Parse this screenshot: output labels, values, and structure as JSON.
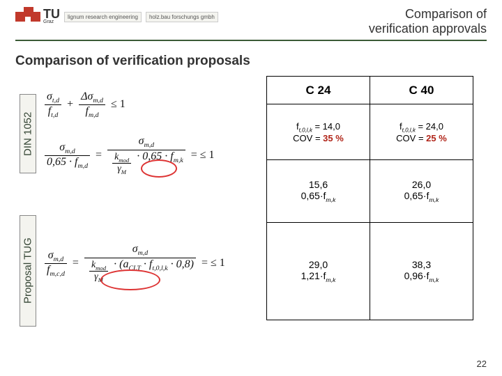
{
  "header": {
    "tu": "TU",
    "tu_sub": "Graz",
    "partner1": "lignum research engineering",
    "partner2": "holz.bau forschungs gmbh",
    "title_line1": "Comparison of",
    "title_line2": "verification approvals"
  },
  "subtitle": "Comparison of verification proposals",
  "vlabels": {
    "din": "DIN 1052",
    "tug": "Proposal TUG"
  },
  "formulas": {
    "f1": {
      "t1_num": "σ",
      "t1_num_sub": "t,d",
      "t1_den": "f",
      "t1_den_sub": "t,d",
      "plus": "+",
      "t2_num": "Δσ",
      "t2_num_sub": "m,d",
      "t2_den": "f",
      "t2_den_sub": "m,d",
      "tail": "≤ 1"
    },
    "f2": {
      "lhs_num": "σ",
      "lhs_num_sub": "m,d",
      "lhs_den_a": "0,65 · f",
      "lhs_den_a_sub": "m,d",
      "eq": "=",
      "mid_num": "σ",
      "mid_num_sub": "m,d",
      "mid_den_a": "k",
      "mid_den_a_sub": "mod",
      "mid_den_b": "γ",
      "mid_den_b_sub": "M",
      "mid_den_c": "· 0,65 · f",
      "mid_den_c_sub": "m,k",
      "tail": "= ≤ 1"
    },
    "f3": {
      "lhs_num": "σ",
      "lhs_num_sub": "m,d",
      "lhs_den": "f",
      "lhs_den_sub": "m,c,d",
      "eq": "=",
      "mid_num": "σ",
      "mid_num_sub": "m,d",
      "mid_den_a": "k",
      "mid_den_a_sub": "mod",
      "mid_den_b": "γ",
      "mid_den_b_sub": "M",
      "mid_den_c1": "· (a",
      "mid_den_c1_sub": "CLT",
      "mid_den_c2": " · f",
      "mid_den_c2_sub": "t,0,l,k",
      "mid_den_c3": " · 0,8)",
      "tail": "= ≤ 1"
    }
  },
  "table": {
    "h1": "C 24",
    "h2": "C 40",
    "r1c1_a": "f",
    "r1c1_a_sub": "t,0,l,k",
    "r1c1_b": " = 14,0",
    "r1c1_c": "COV = ",
    "r1c1_d": "35 %",
    "r1c2_a": "f",
    "r1c2_a_sub": "t,0,l,k",
    "r1c2_b": " = 24,0",
    "r1c2_c": "COV = ",
    "r1c2_d": "25 %",
    "r2c1_a": "15,6",
    "r2c1_b": "0,65·f",
    "r2c1_b_sub": "m,k",
    "r2c2_a": "26,0",
    "r2c2_b": "0,65·f",
    "r2c2_b_sub": "m,k",
    "r3c1_a": "29,0",
    "r3c1_b": "1,21·f",
    "r3c1_b_sub": "m,k",
    "r3c2_a": "38,3",
    "r3c2_b": "0,96·f",
    "r3c2_b_sub": "m,k"
  },
  "page": "22",
  "colors": {
    "accent": "#3b5a36",
    "brand": "#c1392b",
    "circle": "#d33"
  }
}
